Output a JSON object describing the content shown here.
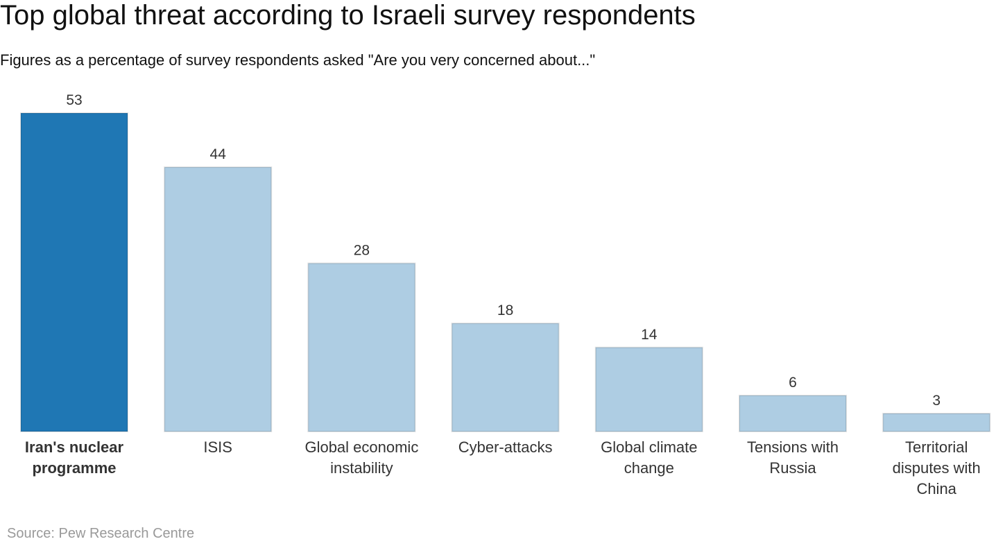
{
  "chart_data": {
    "type": "bar",
    "title": "Top global threat according to Israeli survey respondents",
    "subtitle": "Figures as a percentage of survey respondents asked \"Are you very concerned about...\"",
    "categories": [
      "Iran's nuclear programme",
      "ISIS",
      "Global economic instability",
      "Cyber-attacks",
      "Global climate change",
      "Tensions with Russia",
      "Territorial disputes with China"
    ],
    "values": [
      53,
      44,
      28,
      18,
      14,
      6,
      3
    ],
    "colors": [
      "#1f77b4",
      "#aecde3",
      "#aecde3",
      "#aecde3",
      "#aecde3",
      "#aecde3",
      "#aecde3"
    ],
    "highlight_index": 0,
    "source": "Source: Pew Research Centre"
  }
}
